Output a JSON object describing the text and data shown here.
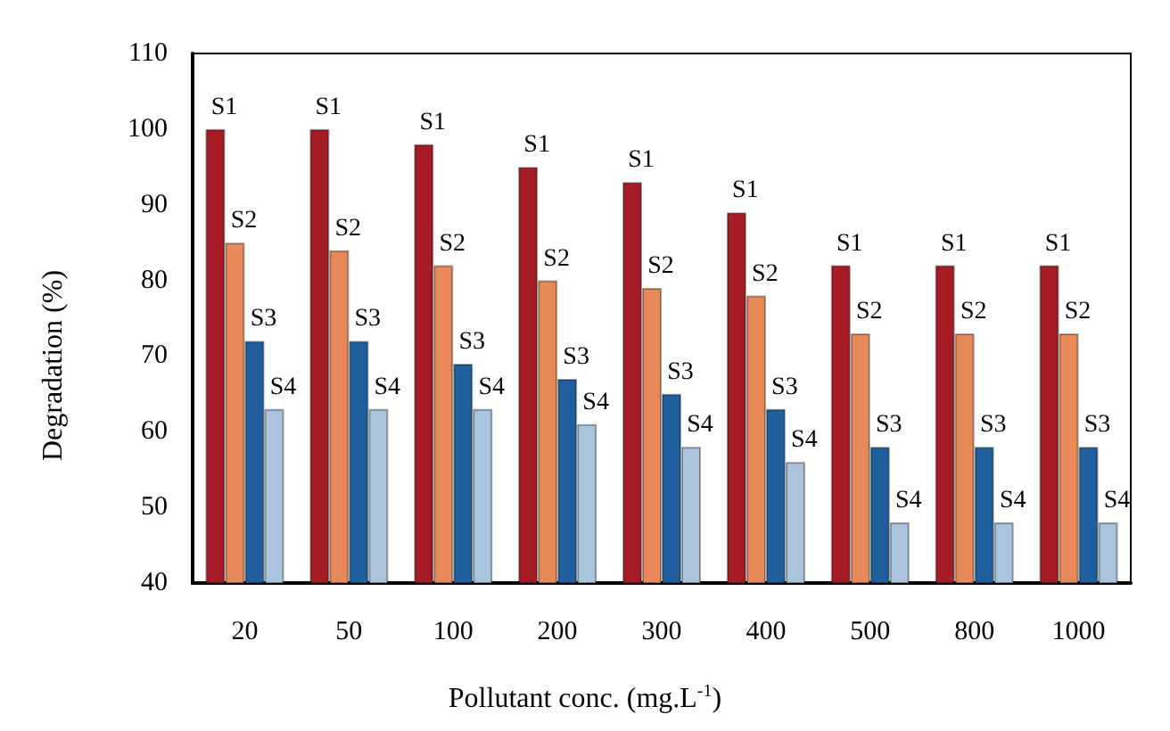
{
  "chart_data": {
    "type": "bar",
    "xlabel": "Pollutant conc. (mg.L$^{-1}$)",
    "ylabel": "Degradation (%)",
    "categories": [
      "20",
      "50",
      "100",
      "200",
      "300",
      "400",
      "500",
      "800",
      "1000"
    ],
    "series": [
      {
        "name": "S1",
        "color": "#a51c24",
        "values": [
          100,
          100,
          98,
          95,
          93,
          89,
          82,
          82,
          82
        ]
      },
      {
        "name": "S2",
        "color": "#e8895a",
        "values": [
          85,
          84,
          82,
          80,
          79,
          78,
          73,
          73,
          73
        ]
      },
      {
        "name": "S3",
        "color": "#1f5f9e",
        "values": [
          72,
          72,
          69,
          67,
          65,
          63,
          58,
          58,
          58
        ]
      },
      {
        "name": "S4",
        "color": "#a9c4dc",
        "values": [
          63,
          63,
          63,
          61,
          58,
          56,
          48,
          48,
          48
        ]
      }
    ],
    "ylim": [
      40,
      110
    ],
    "yticks": [
      40,
      50,
      60,
      70,
      80,
      90,
      100,
      110
    ],
    "grid": false,
    "legend": false
  }
}
